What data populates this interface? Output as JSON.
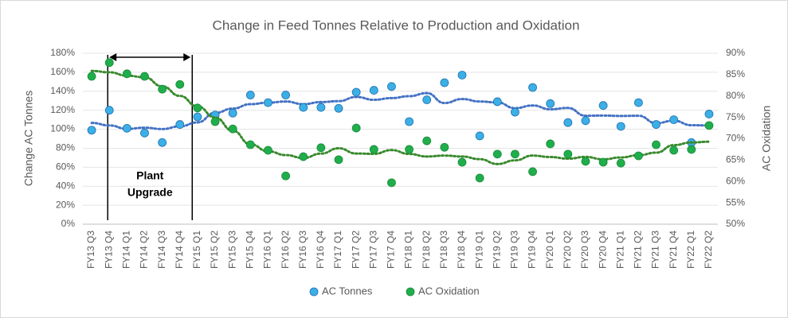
{
  "chart_data": {
    "type": "scatter",
    "title": "Change in Feed Tonnes Relative to Production and Oxidation",
    "y_label": "Change AC Tonnes",
    "y2_label": "AC Oxidation",
    "annotation": [
      "Plant",
      "Upgrade"
    ],
    "categories": [
      "FY13 Q3",
      "FY13 Q4",
      "FY14 Q1",
      "FY14 Q2",
      "FY14 Q3",
      "FY14 Q4",
      "FY15 Q1",
      "FY15 Q2",
      "FY15 Q3",
      "FY15 Q4",
      "FY16 Q1",
      "FY16 Q2",
      "FY16 Q3",
      "FY16 Q4",
      "FY17 Q1",
      "FY17 Q2",
      "FY17 Q3",
      "FY17 Q4",
      "FY18 Q1",
      "FY18 Q2",
      "FY18 Q3",
      "FY18 Q4",
      "FY19 Q1",
      "FY19 Q2",
      "FY19 Q3",
      "FY19 Q4",
      "FY20 Q1",
      "FY20 Q2",
      "FY20 Q3",
      "FY20 Q4",
      "FY21 Q1",
      "FY21 Q2",
      "FY21 Q3",
      "FY21 Q4",
      "FY22 Q1",
      "FY22 Q2"
    ],
    "series": [
      {
        "name": "AC Tonnes",
        "color": "#3cb0e6",
        "stroke": "#1f6fb0",
        "trend_color": "#4472c4",
        "values": [
          99,
          120,
          101,
          96,
          86,
          105,
          113,
          115,
          117,
          136,
          128,
          136,
          123,
          123,
          122,
          139,
          141,
          145,
          108,
          131,
          149,
          157,
          93,
          129,
          118,
          144,
          127,
          107,
          109,
          125,
          103,
          128,
          105,
          110,
          86,
          116
        ]
      },
      {
        "name": "AC Oxidation",
        "color": "#1fae4b",
        "stroke": "#1a8a3a",
        "trend_color": "#3a8a2e",
        "axis": "y2",
        "values": [
          84.6,
          87.8,
          85.2,
          84.6,
          81.6,
          82.7,
          77.2,
          74.0,
          72.3,
          68.6,
          67.3,
          61.3,
          65.8,
          67.9,
          65.1,
          72.5,
          67.5,
          59.7,
          67.5,
          69.5,
          68.0,
          64.5,
          60.8,
          66.4,
          66.4,
          62.3,
          68.8,
          66.4,
          64.7,
          64.5,
          64.3,
          66.0,
          68.6,
          67.3,
          67.5,
          73.1
        ]
      }
    ],
    "ylim": [
      0,
      180
    ],
    "yticks": [
      {
        "value": 0,
        "label": "0%"
      },
      {
        "value": 20,
        "label": "20%"
      },
      {
        "value": 40,
        "label": "40%"
      },
      {
        "value": 60,
        "label": "60%"
      },
      {
        "value": 80,
        "label": "80%"
      },
      {
        "value": 100,
        "label": "100%"
      },
      {
        "value": 120,
        "label": "120%"
      },
      {
        "value": 140,
        "label": "140%"
      },
      {
        "value": 160,
        "label": "160%"
      },
      {
        "value": 180,
        "label": "180%"
      }
    ],
    "y2lim": [
      50,
      90
    ],
    "y2ticks": [
      {
        "value": 50,
        "label": "50%"
      },
      {
        "value": 55,
        "label": "55%"
      },
      {
        "value": 60,
        "label": "60%"
      },
      {
        "value": 65,
        "label": "65%"
      },
      {
        "value": 70,
        "label": "70%"
      },
      {
        "value": 75,
        "label": "75%"
      },
      {
        "value": 80,
        "label": "80%"
      },
      {
        "value": 85,
        "label": "85%"
      },
      {
        "value": 90,
        "label": "90%"
      }
    ],
    "grid": true,
    "legend": "bottom"
  }
}
